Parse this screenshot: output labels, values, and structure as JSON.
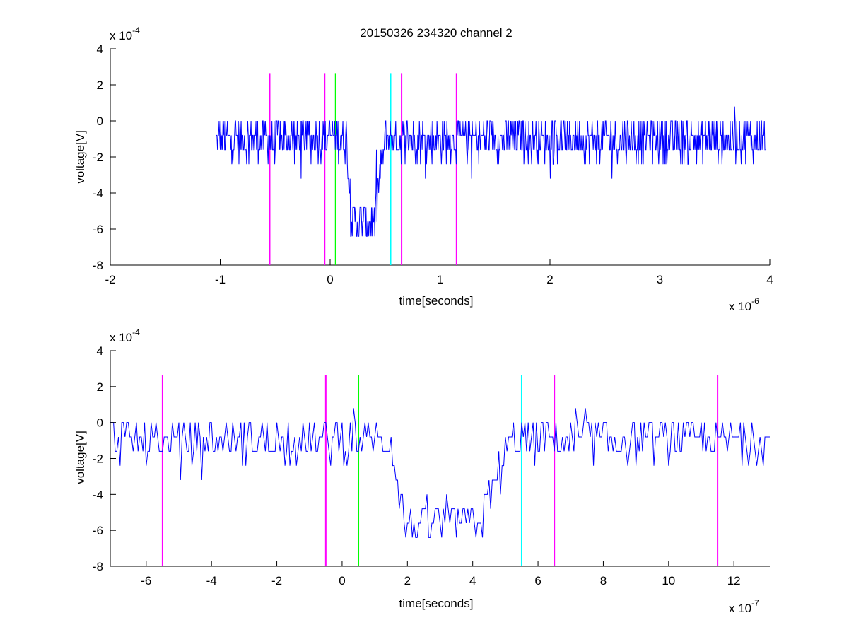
{
  "chart_data": [
    {
      "type": "line",
      "title": "20150326 234320 channel 2",
      "xlabel": "time[seconds]",
      "ylabel": "voltage[V]",
      "x_exponent_label": "x 10",
      "x_exponent": "-6",
      "y_exponent_label": "x 10",
      "y_exponent": "-4",
      "xlim": [
        -2,
        4
      ],
      "ylim": [
        -8,
        4
      ],
      "x_ticks": [
        -2,
        -1,
        0,
        1,
        2,
        3,
        4
      ],
      "x_tick_labels": [
        "-2",
        "-1",
        "0",
        "1",
        "2",
        "3",
        "4"
      ],
      "y_ticks": [
        -8,
        -6,
        -4,
        -2,
        0,
        2,
        4
      ],
      "y_tick_labels": [
        "-8",
        "-6",
        "-4",
        "-2",
        "0",
        "2",
        "4"
      ],
      "grid": false,
      "signal": {
        "color": "#0000ff",
        "x_start": -1.04,
        "x_end": 3.96,
        "num_points": 1000,
        "baseline": -1.0,
        "pulse_min": -5.6,
        "pulse_fall_start": 0.15,
        "pulse_fall_end": 0.19,
        "pulse_rise_start": 0.4,
        "pulse_rise_end": 0.5,
        "levels": [
          -2.4,
          -1.6,
          -0.8,
          0,
          0.8,
          1.6,
          2.4,
          -3.2,
          -4.0,
          -4.8,
          -5.6,
          -6.4,
          -7.2
        ]
      },
      "markers": [
        {
          "x": -0.55,
          "color": "#ff00ff"
        },
        {
          "x": -0.05,
          "color": "#ff00ff"
        },
        {
          "x": 0.05,
          "color": "#00ff00"
        },
        {
          "x": 0.55,
          "color": "#00ffff"
        },
        {
          "x": 0.65,
          "color": "#ff00ff"
        },
        {
          "x": 1.15,
          "color": "#ff00ff"
        }
      ],
      "marker_top": 2.65
    },
    {
      "type": "line",
      "title": "",
      "xlabel": "time[seconds]",
      "ylabel": "voltage[V]",
      "x_exponent_label": "x 10",
      "x_exponent": "-7",
      "y_exponent_label": "x 10",
      "y_exponent": "-4",
      "xlim": [
        -7.1,
        13.1
      ],
      "ylim": [
        -8,
        4
      ],
      "x_ticks": [
        -6,
        -4,
        -2,
        0,
        2,
        4,
        6,
        8,
        10,
        12
      ],
      "x_tick_labels": [
        "-6",
        "-4",
        "-2",
        "0",
        "2",
        "4",
        "6",
        "8",
        "10",
        "12"
      ],
      "y_ticks": [
        -8,
        -6,
        -4,
        -2,
        0,
        2,
        4
      ],
      "y_tick_labels": [
        "-8",
        "-6",
        "-4",
        "-2",
        "0",
        "2",
        "4"
      ],
      "grid": false,
      "signal": {
        "color": "#0000ff",
        "x_start": -7.1,
        "x_end": 13.1,
        "num_points": 405,
        "baseline": -1.0,
        "pulse_min": -5.6,
        "pulse_fall_start": 1.5,
        "pulse_fall_end": 1.9,
        "pulse_rise_start": 4.2,
        "pulse_rise_end": 5.2,
        "levels": [
          -2.4,
          -1.6,
          -0.8,
          0,
          0.8,
          1.6,
          -3.2,
          -4.0,
          -4.8,
          -5.6,
          -6.4,
          -7.2
        ]
      },
      "markers": [
        {
          "x": -5.5,
          "color": "#ff00ff"
        },
        {
          "x": -0.5,
          "color": "#ff00ff"
        },
        {
          "x": 0.5,
          "color": "#00ff00"
        },
        {
          "x": 5.5,
          "color": "#00ffff"
        },
        {
          "x": 6.5,
          "color": "#ff00ff"
        },
        {
          "x": 11.5,
          "color": "#ff00ff"
        }
      ],
      "marker_top": 2.65
    }
  ]
}
